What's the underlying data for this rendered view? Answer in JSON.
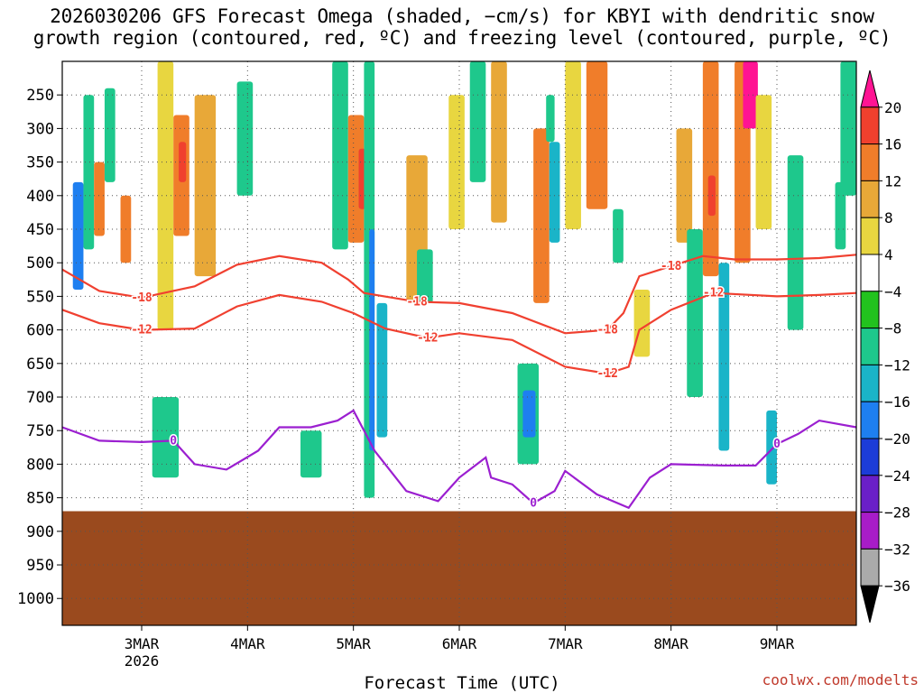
{
  "chart_data": {
    "type": "heatmap",
    "title_line1": "2026030206 GFS Forecast Omega (shaded, −cm/s) for KBYI with dendritic snow",
    "title_line2": "growth region (contoured, red, ºC) and freezing level (contoured, purple, ºC)",
    "xlabel": "Forecast Time (UTC)",
    "credit": "coolwx.com/modelts",
    "x_ticks": [
      {
        "label": "3MAR",
        "sub": "2026",
        "day": 3.0
      },
      {
        "label": "4MAR",
        "sub": "",
        "day": 4.0
      },
      {
        "label": "5MAR",
        "sub": "",
        "day": 5.0
      },
      {
        "label": "6MAR",
        "sub": "",
        "day": 6.0
      },
      {
        "label": "7MAR",
        "sub": "",
        "day": 7.0
      },
      {
        "label": "8MAR",
        "sub": "",
        "day": 8.0
      },
      {
        "label": "9MAR",
        "sub": "",
        "day": 9.0
      }
    ],
    "x_range": [
      2.25,
      9.75
    ],
    "y_ticks": [
      250,
      300,
      350,
      400,
      450,
      500,
      550,
      600,
      650,
      700,
      750,
      800,
      850,
      900,
      950,
      1000
    ],
    "y_range_hpa": [
      200,
      1040
    ],
    "surface_pressure_hpa": 870,
    "colorbar": {
      "labels": [
        "20",
        "16",
        "12",
        "8",
        "4",
        "−4",
        "−8",
        "−12",
        "−16",
        "−20",
        "−24",
        "−28",
        "−32",
        "−36"
      ],
      "colors": [
        "#ff1493",
        "#f0402e",
        "#f07d2a",
        "#e8a838",
        "#e8d640",
        "#ffffff",
        "#22c21e",
        "#1ec88c",
        "#1ab4c8",
        "#1e7ff0",
        "#1c3cd8",
        "#6a1fc8",
        "#a81cc8",
        "#aaaaaa",
        "#000000"
      ]
    },
    "isotherm_minus18": {
      "label": "-18",
      "color": "#f04030",
      "points": [
        [
          2.25,
          510
        ],
        [
          2.6,
          542
        ],
        [
          3.0,
          552
        ],
        [
          3.5,
          535
        ],
        [
          3.9,
          503
        ],
        [
          4.3,
          490
        ],
        [
          4.7,
          500
        ],
        [
          4.95,
          525
        ],
        [
          5.1,
          545
        ],
        [
          5.6,
          558
        ],
        [
          6.0,
          560
        ],
        [
          6.5,
          575
        ],
        [
          7.0,
          605
        ],
        [
          7.4,
          600
        ],
        [
          7.55,
          575
        ],
        [
          7.7,
          520
        ],
        [
          8.0,
          505
        ],
        [
          8.3,
          490
        ],
        [
          8.6,
          495
        ],
        [
          9.0,
          495
        ],
        [
          9.4,
          493
        ],
        [
          9.75,
          488
        ]
      ]
    },
    "isotherm_minus12": {
      "label": "-12",
      "color": "#f04030",
      "points": [
        [
          2.25,
          570
        ],
        [
          2.6,
          590
        ],
        [
          3.0,
          600
        ],
        [
          3.5,
          598
        ],
        [
          3.9,
          565
        ],
        [
          4.3,
          548
        ],
        [
          4.7,
          558
        ],
        [
          5.0,
          575
        ],
        [
          5.3,
          598
        ],
        [
          5.7,
          612
        ],
        [
          6.0,
          605
        ],
        [
          6.5,
          615
        ],
        [
          7.0,
          655
        ],
        [
          7.4,
          665
        ],
        [
          7.6,
          655
        ],
        [
          7.7,
          600
        ],
        [
          8.0,
          570
        ],
        [
          8.4,
          545
        ],
        [
          9.0,
          550
        ],
        [
          9.4,
          548
        ],
        [
          9.75,
          545
        ]
      ]
    },
    "isotherm_zero": {
      "label": "0",
      "color": "#9b1fd0",
      "points": [
        [
          2.25,
          745
        ],
        [
          2.6,
          765
        ],
        [
          3.0,
          767
        ],
        [
          3.3,
          765
        ],
        [
          3.5,
          800
        ],
        [
          3.8,
          808
        ],
        [
          4.1,
          780
        ],
        [
          4.3,
          745
        ],
        [
          4.6,
          745
        ],
        [
          4.85,
          735
        ],
        [
          5.0,
          720
        ],
        [
          5.2,
          780
        ],
        [
          5.5,
          840
        ],
        [
          5.8,
          855
        ],
        [
          6.0,
          820
        ],
        [
          6.25,
          790
        ],
        [
          6.3,
          820
        ],
        [
          6.5,
          830
        ],
        [
          6.7,
          858
        ],
        [
          6.9,
          840
        ],
        [
          7.0,
          810
        ],
        [
          7.3,
          845
        ],
        [
          7.6,
          865
        ],
        [
          7.8,
          820
        ],
        [
          8.0,
          800
        ],
        [
          8.5,
          802
        ],
        [
          8.8,
          802
        ],
        [
          9.0,
          770
        ],
        [
          9.2,
          755
        ],
        [
          9.4,
          735
        ],
        [
          9.75,
          745
        ]
      ]
    },
    "omega_cells": [
      {
        "x0": 2.35,
        "x1": 2.45,
        "p0": 380,
        "p1": 540,
        "v": -16
      },
      {
        "x0": 2.45,
        "x1": 2.55,
        "p0": 250,
        "p1": 480,
        "v": -8
      },
      {
        "x0": 2.55,
        "x1": 2.65,
        "p0": 350,
        "p1": 460,
        "v": 12
      },
      {
        "x0": 2.65,
        "x1": 2.75,
        "p0": 240,
        "p1": 380,
        "v": -8
      },
      {
        "x0": 2.8,
        "x1": 2.9,
        "p0": 400,
        "p1": 500,
        "v": 12
      },
      {
        "x0": 3.15,
        "x1": 3.3,
        "p0": 200,
        "p1": 600,
        "v": 4
      },
      {
        "x0": 3.3,
        "x1": 3.45,
        "p0": 280,
        "p1": 460,
        "v": 12
      },
      {
        "x0": 3.35,
        "x1": 3.42,
        "p0": 320,
        "p1": 380,
        "v": 16
      },
      {
        "x0": 3.5,
        "x1": 3.7,
        "p0": 250,
        "p1": 520,
        "v": 8
      },
      {
        "x0": 3.1,
        "x1": 3.35,
        "p0": 700,
        "p1": 820,
        "v": -8
      },
      {
        "x0": 3.9,
        "x1": 4.05,
        "p0": 230,
        "p1": 400,
        "v": -8
      },
      {
        "x0": 4.5,
        "x1": 4.7,
        "p0": 750,
        "p1": 820,
        "v": -8
      },
      {
        "x0": 4.8,
        "x1": 4.95,
        "p0": 200,
        "p1": 480,
        "v": -8
      },
      {
        "x0": 4.95,
        "x1": 5.1,
        "p0": 280,
        "p1": 470,
        "v": 12
      },
      {
        "x0": 5.05,
        "x1": 5.12,
        "p0": 330,
        "p1": 420,
        "v": 16
      },
      {
        "x0": 5.1,
        "x1": 5.2,
        "p0": 200,
        "p1": 850,
        "v": -8
      },
      {
        "x0": 5.15,
        "x1": 5.2,
        "p0": 450,
        "p1": 780,
        "v": -16
      },
      {
        "x0": 5.22,
        "x1": 5.32,
        "p0": 560,
        "p1": 760,
        "v": -12
      },
      {
        "x0": 5.5,
        "x1": 5.7,
        "p0": 340,
        "p1": 560,
        "v": 8
      },
      {
        "x0": 5.6,
        "x1": 5.75,
        "p0": 480,
        "p1": 560,
        "v": -8
      },
      {
        "x0": 5.9,
        "x1": 6.05,
        "p0": 250,
        "p1": 450,
        "v": 4
      },
      {
        "x0": 6.1,
        "x1": 6.25,
        "p0": 130,
        "p1": 380,
        "v": -8
      },
      {
        "x0": 6.3,
        "x1": 6.45,
        "p0": 200,
        "p1": 440,
        "v": 8
      },
      {
        "x0": 6.55,
        "x1": 6.75,
        "p0": 650,
        "p1": 800,
        "v": -8
      },
      {
        "x0": 6.6,
        "x1": 6.72,
        "p0": 690,
        "p1": 760,
        "v": -16
      },
      {
        "x0": 6.7,
        "x1": 6.85,
        "p0": 300,
        "p1": 560,
        "v": 12
      },
      {
        "x0": 6.82,
        "x1": 6.9,
        "p0": 250,
        "p1": 320,
        "v": -8
      },
      {
        "x0": 6.85,
        "x1": 6.95,
        "p0": 320,
        "p1": 470,
        "v": -12
      },
      {
        "x0": 7.0,
        "x1": 7.15,
        "p0": 200,
        "p1": 450,
        "v": 4
      },
      {
        "x0": 7.2,
        "x1": 7.4,
        "p0": 200,
        "p1": 420,
        "v": 12
      },
      {
        "x0": 7.45,
        "x1": 7.55,
        "p0": 420,
        "p1": 500,
        "v": -8
      },
      {
        "x0": 7.65,
        "x1": 7.8,
        "p0": 540,
        "p1": 640,
        "v": 4
      },
      {
        "x0": 8.05,
        "x1": 8.2,
        "p0": 300,
        "p1": 470,
        "v": 8
      },
      {
        "x0": 8.15,
        "x1": 8.3,
        "p0": 450,
        "p1": 700,
        "v": -8
      },
      {
        "x0": 8.3,
        "x1": 8.45,
        "p0": 200,
        "p1": 520,
        "v": 12
      },
      {
        "x0": 8.35,
        "x1": 8.42,
        "p0": 370,
        "p1": 430,
        "v": 16
      },
      {
        "x0": 8.45,
        "x1": 8.55,
        "p0": 500,
        "p1": 780,
        "v": -12
      },
      {
        "x0": 8.6,
        "x1": 8.75,
        "p0": 180,
        "p1": 500,
        "v": 12
      },
      {
        "x0": 8.68,
        "x1": 8.82,
        "p0": 180,
        "p1": 300,
        "v": 20
      },
      {
        "x0": 8.8,
        "x1": 8.95,
        "p0": 250,
        "p1": 450,
        "v": 4
      },
      {
        "x0": 8.9,
        "x1": 9.0,
        "p0": 720,
        "p1": 830,
        "v": -12
      },
      {
        "x0": 9.1,
        "x1": 9.25,
        "p0": 340,
        "p1": 600,
        "v": -8
      },
      {
        "x0": 9.6,
        "x1": 9.75,
        "p0": 200,
        "p1": 400,
        "v": -8
      },
      {
        "x0": 9.55,
        "x1": 9.65,
        "p0": 380,
        "p1": 480,
        "v": -8
      }
    ]
  }
}
